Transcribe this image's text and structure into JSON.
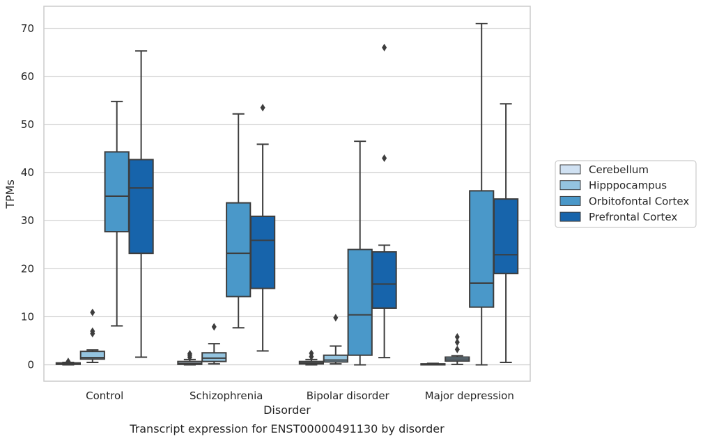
{
  "chart_data": {
    "type": "boxplot",
    "xlabel": "Disorder",
    "ylabel": "TPMs",
    "caption": "Transcript expression for ENST00000491130 by disorder",
    "categories": [
      "Control",
      "Schizophrenia",
      "Bipolar disorder",
      "Major depression"
    ],
    "ylim": [
      -3.4,
      74.6
    ],
    "yticks": [
      0,
      10,
      20,
      30,
      40,
      50,
      60,
      70
    ],
    "grid": true,
    "legend_position": "right",
    "series": [
      {
        "name": "Cerebellum",
        "color": "#d0e1f2",
        "boxes": [
          {
            "min": 0.0,
            "q1": 0.1,
            "median": 0.2,
            "q3": 0.4,
            "max": 0.5,
            "outliers": [
              0.7
            ]
          },
          {
            "min": 0.0,
            "q1": 0.1,
            "median": 0.3,
            "q3": 0.7,
            "max": 1.1,
            "outliers": [
              1.6,
              2.0,
              2.3
            ]
          },
          {
            "min": 0.0,
            "q1": 0.2,
            "median": 0.4,
            "q3": 0.7,
            "max": 1.1,
            "outliers": [
              1.7,
              2.4
            ]
          },
          {
            "min": 0.0,
            "q1": 0.0,
            "median": 0.1,
            "q3": 0.2,
            "max": 0.3,
            "outliers": []
          }
        ]
      },
      {
        "name": "Hipppocampus",
        "color": "#94c4df",
        "boxes": [
          {
            "min": 0.5,
            "q1": 1.2,
            "median": 1.5,
            "q3": 2.8,
            "max": 3.1,
            "outliers": [
              6.5,
              7.0,
              10.9
            ]
          },
          {
            "min": 0.2,
            "q1": 0.7,
            "median": 1.4,
            "q3": 2.5,
            "max": 4.4,
            "outliers": [
              7.9
            ]
          },
          {
            "min": 0.2,
            "q1": 0.6,
            "median": 1.0,
            "q3": 2.0,
            "max": 3.9,
            "outliers": [
              9.8
            ]
          },
          {
            "min": 0.1,
            "q1": 0.8,
            "median": 1.2,
            "q3": 1.6,
            "max": 1.9,
            "outliers": [
              3.2,
              4.7,
              5.8
            ]
          }
        ]
      },
      {
        "name": "Orbitofontal Cortex",
        "color": "#4a98c9",
        "boxes": [
          {
            "min": 8.1,
            "q1": 27.7,
            "median": 35.1,
            "q3": 44.3,
            "max": 54.8,
            "outliers": []
          },
          {
            "min": 7.7,
            "q1": 14.2,
            "median": 23.2,
            "q3": 33.7,
            "max": 52.2,
            "outliers": []
          },
          {
            "min": 0.0,
            "q1": 2.0,
            "median": 10.4,
            "q3": 24.0,
            "max": 46.5,
            "outliers": []
          },
          {
            "min": 0.0,
            "q1": 12.0,
            "median": 17.0,
            "q3": 36.2,
            "max": 71.0,
            "outliers": []
          }
        ]
      },
      {
        "name": "Prefrontal Cortex",
        "color": "#1764ab",
        "boxes": [
          {
            "min": 1.6,
            "q1": 23.2,
            "median": 36.8,
            "q3": 42.7,
            "max": 65.3,
            "outliers": []
          },
          {
            "min": 2.9,
            "q1": 15.9,
            "median": 25.9,
            "q3": 30.9,
            "max": 45.9,
            "outliers": [
              53.5
            ]
          },
          {
            "min": 1.5,
            "q1": 11.8,
            "median": 16.8,
            "q3": 23.5,
            "max": 24.9,
            "outliers": [
              43.0,
              66.0
            ]
          },
          {
            "min": 0.5,
            "q1": 19.0,
            "median": 22.9,
            "q3": 34.5,
            "max": 54.3,
            "outliers": []
          }
        ]
      }
    ]
  }
}
